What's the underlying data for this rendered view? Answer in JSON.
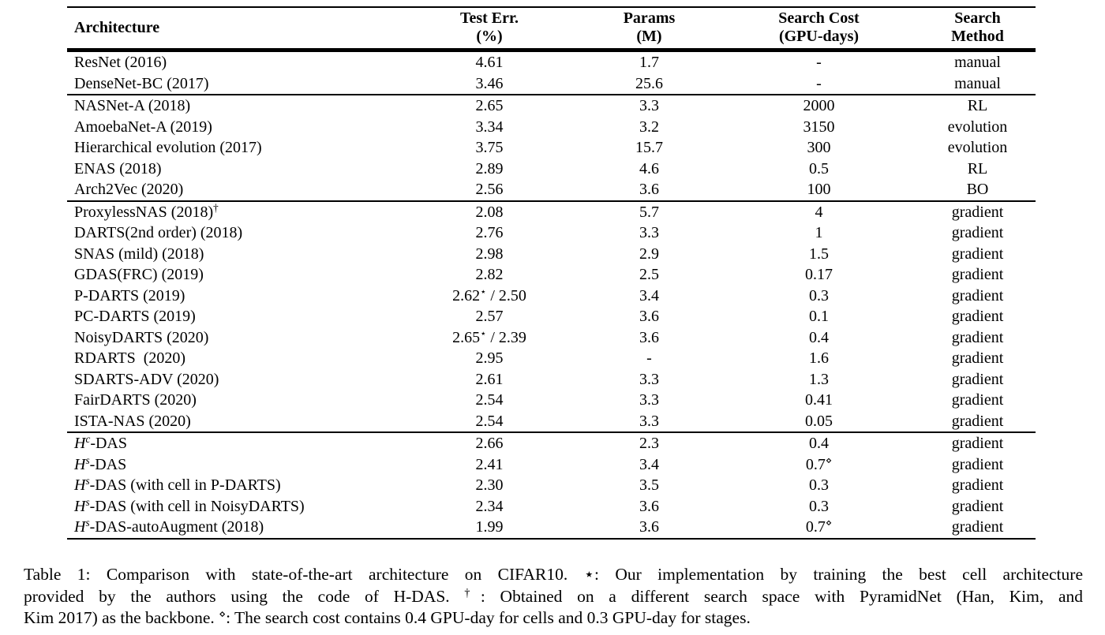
{
  "page": {
    "background_color": "#ffffff",
    "text_color": "#000000"
  },
  "table": {
    "columns": [
      {
        "id": "architecture",
        "label_lines": [
          "Architecture"
        ]
      },
      {
        "id": "test-err",
        "label_lines": [
          "Test Err.",
          "(%)"
        ]
      },
      {
        "id": "params",
        "label_lines": [
          "Params",
          "(M)"
        ]
      },
      {
        "id": "search-cost",
        "label_lines": [
          "Search Cost",
          "(GPU-days)"
        ]
      },
      {
        "id": "search-method",
        "label_lines": [
          "Search",
          "Method"
        ]
      }
    ],
    "groups": [
      {
        "rows": [
          [
            "ResNet (2016)",
            "4.61",
            "1.7",
            "-",
            "manual"
          ],
          [
            "DenseNet-BC (2017)",
            "3.46",
            "25.6",
            "-",
            "manual"
          ]
        ]
      },
      {
        "rows": [
          [
            "NASNet-A (2018)",
            "2.65",
            "3.3",
            "2000",
            "RL"
          ],
          [
            "AmoebaNet-A (2019)",
            "3.34",
            "3.2",
            "3150",
            "evolution"
          ],
          [
            "Hierarchical evolution (2017)",
            "3.75",
            "15.7",
            "300",
            "evolution"
          ],
          [
            "ENAS (2018)",
            "2.89",
            "4.6",
            "0.5",
            "RL"
          ],
          [
            "Arch2Vec (2020)",
            "2.56",
            "3.6",
            "100",
            "BO"
          ]
        ]
      },
      {
        "rows": [
          [
            "ProxylessNAS (2018)^{†}",
            "2.08",
            "5.7",
            "4",
            "gradient"
          ],
          [
            "DARTS(2nd order) (2018)",
            "2.76",
            "3.3",
            "1",
            "gradient"
          ],
          [
            "SNAS (mild) (2018)",
            "2.98",
            "2.9",
            "1.5",
            "gradient"
          ],
          [
            "GDAS(FRC) (2019)",
            "2.82",
            "2.5",
            "0.17",
            "gradient"
          ],
          [
            "P-DARTS (2019)",
            "2.62^{⋆} / 2.50",
            "3.4",
            "0.3",
            "gradient"
          ],
          [
            "PC-DARTS (2019)",
            "2.57",
            "3.6",
            "0.1",
            "gradient"
          ],
          [
            "NoisyDARTS (2020)",
            "2.65^{⋆} / 2.39",
            "3.6",
            "0.4",
            "gradient"
          ],
          [
            "RDARTS  (2020)",
            "2.95",
            "-",
            "1.6",
            "gradient"
          ],
          [
            "SDARTS-ADV (2020)",
            "2.61",
            "3.3",
            "1.3",
            "gradient"
          ],
          [
            "FairDARTS (2020)",
            "2.54",
            "3.3",
            "0.41",
            "gradient"
          ],
          [
            "ISTA-NAS (2020)",
            "2.54",
            "3.3",
            "0.05",
            "gradient"
          ]
        ]
      },
      {
        "rows": [
          [
            "$H^{c}$-DAS",
            "2.66",
            "2.3",
            "0.4",
            "gradient"
          ],
          [
            "$H^{s}$-DAS",
            "2.41",
            "3.4",
            "0.7^{⋄}",
            "gradient"
          ],
          [
            "$H^{s}$-DAS (with cell in P-DARTS)",
            "2.30",
            "3.5",
            "0.3",
            "gradient"
          ],
          [
            "$H^{s}$-DAS (with cell in NoisyDARTS)",
            "2.34",
            "3.6",
            "0.3",
            "gradient"
          ],
          [
            "$H^{s}$-DAS-autoAugment (2018)",
            "1.99",
            "3.6",
            "0.7^{⋄}",
            "gradient"
          ]
        ]
      }
    ]
  },
  "caption": {
    "lines": [
      "Table 1: Comparison with state-of-the-art architecture on CIFAR10.  ⋆: Our implementation by training the best cell architecture",
      "provided by the authors using the code of H-DAS.  ^{†}: Obtained on a different search space with PyramidNet (Han, Kim, and",
      "Kim 2017) as the backbone.  ^{⋄}: The search cost contains 0.4 GPU-day for cells and 0.3 GPU-day for stages."
    ]
  }
}
